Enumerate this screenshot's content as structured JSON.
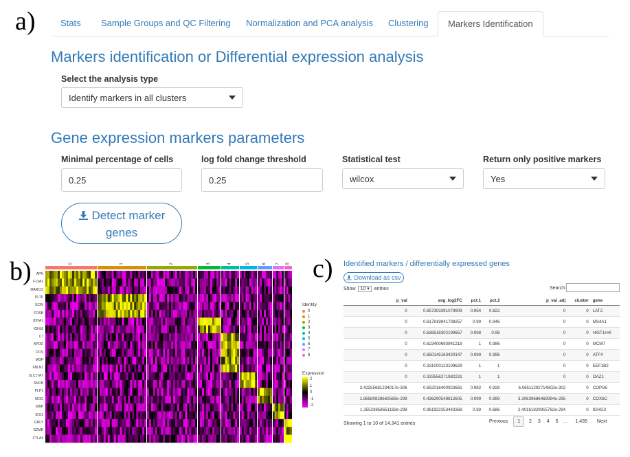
{
  "panel_labels": [
    "a)",
    "b)",
    "c)"
  ],
  "tabs": [
    {
      "label": "Stats"
    },
    {
      "label": "Sample Groups and QC Filtering"
    },
    {
      "label": "Normalization and PCA analysis"
    },
    {
      "label": "Clustering"
    },
    {
      "label": "Markers Identification",
      "active": true
    }
  ],
  "section1": {
    "title": "Markers identification or Differential expression analysis",
    "analysis_label": "Select the analysis type",
    "analysis_value": "Identify markers in all clusters"
  },
  "section2": {
    "title": "Gene expression markers parameters",
    "min_pct_label": "Minimal percentage of cells",
    "min_pct_value": "0.25",
    "logfc_label": "log fold change threshold",
    "logfc_value": "0.25",
    "test_label": "Statistical test",
    "test_value": "wilcox",
    "pos_label": "Return only positive markers",
    "pos_value": "Yes",
    "detect_button_line1": "Detect marker",
    "detect_button_line2": "genes"
  },
  "heatmap": {
    "clusters": [
      "0",
      "1",
      "2",
      "3",
      "4",
      "5",
      "6",
      "7",
      "8"
    ],
    "cluster_colors": [
      "#F8766D",
      "#D39200",
      "#93AA00",
      "#00BA38",
      "#00C19F",
      "#00B9E3",
      "#619CFF",
      "#DB72FB",
      "#FF61C3"
    ],
    "genes": [
      "APN",
      "F13A1",
      "MARCO",
      "PLTP",
      "SCIN",
      "FOSB",
      "IDHA1",
      "IGHJ6",
      "C7",
      "APOD",
      "DCN",
      "MGP",
      "FBLN1",
      "SLC17A7",
      "SNCB",
      "PLP1",
      "MOG",
      "MBP",
      "IDO1",
      "GNLY",
      "GZMB",
      "CTLA4"
    ],
    "legend_identity_title": "Identity",
    "legend_expression_title": "Expression",
    "expression_ticks": [
      "2",
      "1",
      "0",
      "-1",
      "-2"
    ],
    "colors": {
      "high": "#FFFF00",
      "mid": "#000000",
      "low": "#FF00FF"
    }
  },
  "results": {
    "title": "Identified markers / differentially expressed genes",
    "download_label": "Download as csv",
    "show_label": "Show",
    "entries_value": "10",
    "entries_label": "entries",
    "search_label": "Search:",
    "columns": [
      "p_val",
      "avg_log2FC",
      "pct.1",
      "pct.2",
      "p_val_adj",
      "cluster",
      "gene"
    ],
    "rows": [
      [
        "0",
        "0.857303391079909",
        "0.954",
        "0.822",
        "0",
        "0",
        "LAT2"
      ],
      [
        "0",
        "0.617819941708257",
        "0.99",
        "0.946",
        "0",
        "0",
        "MS4A1"
      ],
      [
        "0",
        "0.638518302199657",
        "0.998",
        "0.98",
        "0",
        "0",
        "HIST1H4I"
      ],
      [
        "0",
        "0.623400693941218",
        "1",
        "0.986",
        "0",
        "0",
        "MCM7"
      ],
      [
        "0",
        "0.650145163420147",
        "0.999",
        "0.996",
        "0",
        "0",
        "ATF4"
      ],
      [
        "0",
        "0.331000123109629",
        "1",
        "1",
        "0",
        "0",
        "EEF1B2"
      ],
      [
        "0",
        "0.333556271982231",
        "1",
        "1",
        "0",
        "0",
        "OAZ1"
      ],
      [
        "3.42255681234017e-306",
        "0.652016400923661",
        "0.982",
        "0.928",
        "6.06511292714802e-302",
        "0",
        "COPS6"
      ],
      [
        "1.86580828660569e-299",
        "0.436290548812605",
        "0.999",
        "0.999",
        "3.30639686469394e-295",
        "0",
        "COX6C"
      ],
      [
        "1.35523858651183e-298",
        "0.961922253443368",
        "0.89",
        "0.686",
        "2.40161829915762e-294",
        "0",
        "IGHG3"
      ]
    ],
    "info": "Showing 1 to 10 of 14,341 entries",
    "pager": {
      "previous": "Previous",
      "pages": [
        "1",
        "2",
        "3",
        "4",
        "5"
      ],
      "ellipsis": "…",
      "last": "1,435",
      "next": "Next"
    }
  }
}
